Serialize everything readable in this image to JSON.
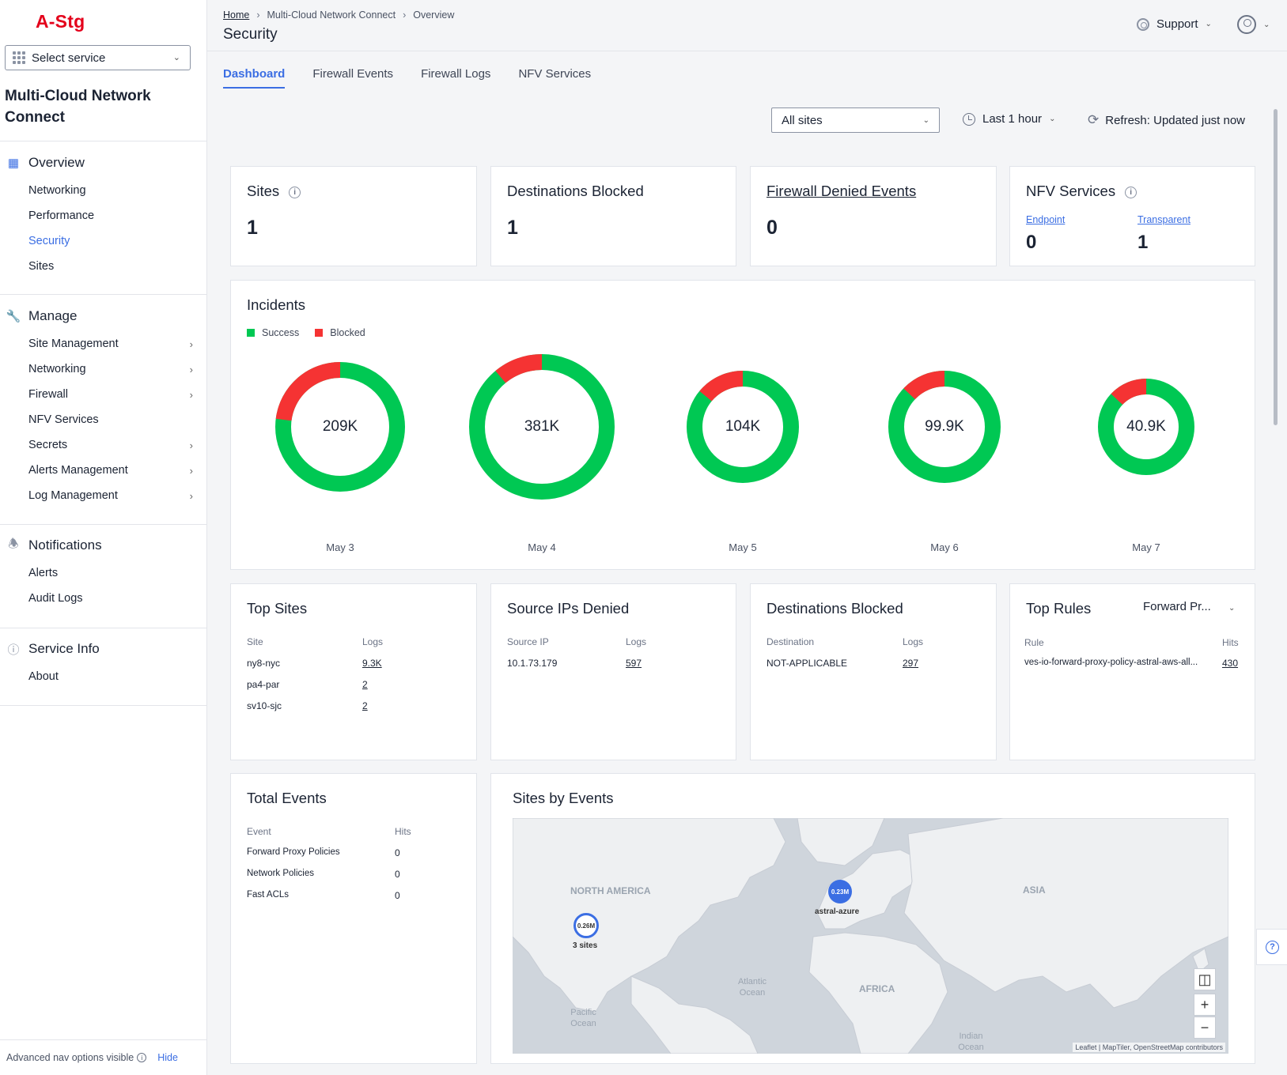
{
  "brand": "A-Stg",
  "service_select": {
    "label": "Select service"
  },
  "app_title": "Multi-Cloud Network Connect",
  "nav": {
    "overview": {
      "label": "Overview",
      "items": [
        {
          "label": "Networking"
        },
        {
          "label": "Performance"
        },
        {
          "label": "Security"
        },
        {
          "label": "Sites"
        }
      ]
    },
    "manage": {
      "label": "Manage",
      "items": [
        {
          "label": "Site Management"
        },
        {
          "label": "Networking"
        },
        {
          "label": "Firewall"
        },
        {
          "label": "NFV Services"
        },
        {
          "label": "Secrets"
        },
        {
          "label": "Alerts Management"
        },
        {
          "label": "Log Management"
        }
      ]
    },
    "notifications": {
      "label": "Notifications",
      "items": [
        {
          "label": "Alerts"
        },
        {
          "label": "Audit Logs"
        }
      ]
    },
    "service_info": {
      "label": "Service Info",
      "items": [
        {
          "label": "About"
        }
      ]
    },
    "footer": {
      "text": "Advanced nav options visible",
      "hide": "Hide"
    }
  },
  "breadcrumb": {
    "home": "Home",
    "section": "Multi-Cloud Network Connect",
    "current": "Overview"
  },
  "page_title": "Security",
  "header": {
    "support": "Support"
  },
  "tabs": [
    {
      "label": "Dashboard"
    },
    {
      "label": "Firewall Events"
    },
    {
      "label": "Firewall Logs"
    },
    {
      "label": "NFV Services"
    }
  ],
  "filters": {
    "sites": "All sites",
    "time": "Last 1 hour",
    "refresh": "Refresh: Updated just now"
  },
  "stats": {
    "sites": {
      "title": "Sites",
      "value": "1"
    },
    "destinations_blocked": {
      "title": "Destinations Blocked",
      "value": "1"
    },
    "firewall_denied": {
      "title": "Firewall Denied Events",
      "value": "0"
    },
    "nfv": {
      "title": "NFV Services",
      "endpoint_label": "Endpoint",
      "endpoint_value": "0",
      "transparent_label": "Transparent",
      "transparent_value": "1"
    }
  },
  "incidents": {
    "title": "Incidents",
    "legend": {
      "success": "Success",
      "blocked": "Blocked"
    },
    "colors": {
      "success": "#00c853",
      "blocked": "#f53333"
    },
    "days": [
      {
        "date": "May 3",
        "total": "209K",
        "blocked_fraction": 0.23
      },
      {
        "date": "May 4",
        "total": "381K",
        "blocked_fraction": 0.11
      },
      {
        "date": "May 5",
        "total": "104K",
        "blocked_fraction": 0.14
      },
      {
        "date": "May 6",
        "total": "99.9K",
        "blocked_fraction": 0.13
      },
      {
        "date": "May 7",
        "total": "40.9K",
        "blocked_fraction": 0.13
      }
    ]
  },
  "top_sites": {
    "title": "Top Sites",
    "col_site": "Site",
    "col_logs": "Logs",
    "rows": [
      {
        "site": "ny8-nyc",
        "logs": "9.3K"
      },
      {
        "site": "pa4-par",
        "logs": "2"
      },
      {
        "site": "sv10-sjc",
        "logs": "2"
      }
    ]
  },
  "source_ips": {
    "title": "Source IPs Denied",
    "col_ip": "Source IP",
    "col_logs": "Logs",
    "rows": [
      {
        "ip": "10.1.73.179",
        "logs": "597"
      }
    ]
  },
  "dest_blocked": {
    "title": "Destinations Blocked",
    "col_dest": "Destination",
    "col_logs": "Logs",
    "rows": [
      {
        "dest": "NOT-APPLICABLE",
        "logs": "297"
      }
    ]
  },
  "top_rules": {
    "title": "Top Rules",
    "select": "Forward Pr...",
    "col_rule": "Rule",
    "col_hits": "Hits",
    "rows": [
      {
        "rule": "ves-io-forward-proxy-policy-astral-aws-all...",
        "hits": "430"
      }
    ]
  },
  "total_events": {
    "title": "Total Events",
    "col_event": "Event",
    "col_hits": "Hits",
    "rows": [
      {
        "event": "Forward Proxy Policies",
        "hits": "0"
      },
      {
        "event": "Network Policies",
        "hits": "0"
      },
      {
        "event": "Fast ACLs",
        "hits": "0"
      }
    ]
  },
  "sites_by_events": {
    "title": "Sites by Events",
    "labels": {
      "north_america": "NORTH AMERICA",
      "asia": "ASIA",
      "africa": "AFRICA",
      "atlantic": "Atlantic Ocean",
      "pacific": "Pacific Ocean",
      "indian": "Indian Ocean"
    },
    "clusters": [
      {
        "value": "0.26M",
        "label": "3 sites"
      },
      {
        "value": "0.23M",
        "label": "astral-azure"
      }
    ],
    "attribution": "Leaflet | MapTiler, OpenStreetMap contributors"
  }
}
